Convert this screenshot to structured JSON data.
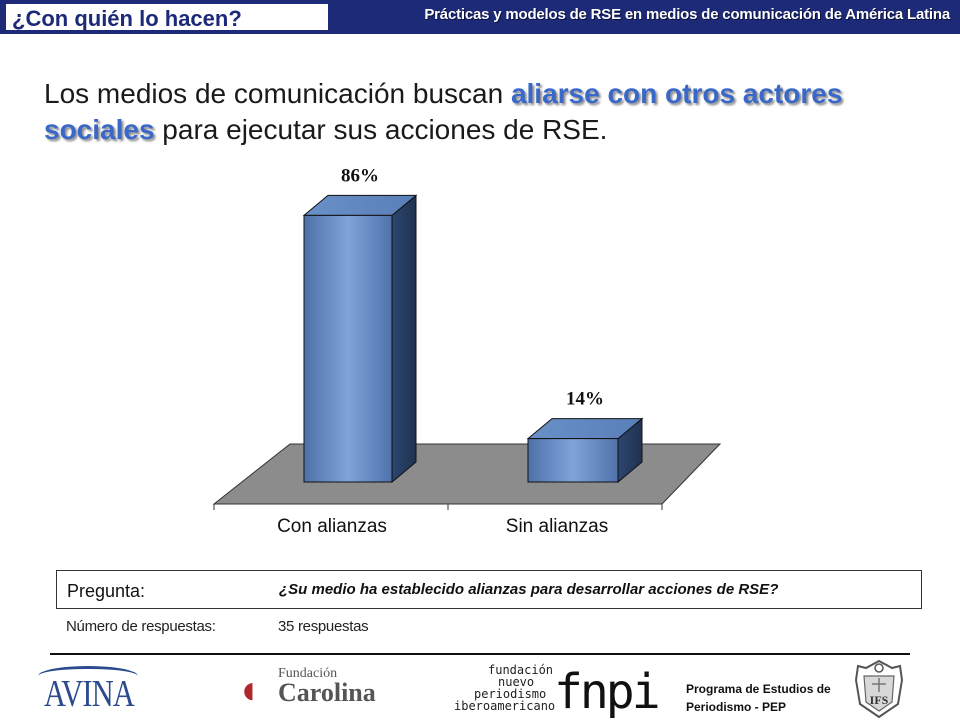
{
  "header": {
    "section_label": "¿Con quién lo hacen?",
    "subtitle": "Prácticas y modelos de RSE en medios de comunicación de América Latina"
  },
  "headline": {
    "part1": "Los medios de comunicación buscan ",
    "highlight": "aliarse con otros actores sociales",
    "part2": " para ejecutar sus acciones de RSE."
  },
  "chart_data": {
    "type": "bar",
    "categories": [
      "Con alianzas",
      "Sin alianzas"
    ],
    "values": [
      86,
      14
    ],
    "value_labels": [
      "86%",
      "14%"
    ],
    "ylim": [
      0,
      100
    ],
    "grid": false,
    "colors": {
      "bar_front": "#7fa4da",
      "bar_dark": "#20324f",
      "bar_top": "#5a7fb8",
      "floor": "#8c8c8c"
    }
  },
  "question": {
    "label": "Pregunta:",
    "text": "¿Su medio ha establecido alianzas para desarrollar acciones de RSE?",
    "responses_label": "Número de respuestas:",
    "responses_value": "35 respuestas"
  },
  "footer": {
    "avina": "AVINA",
    "carolina_small": "Fundación",
    "carolina_big": "Carolina",
    "fnpi_lines": [
      "fundación",
      "nuevo",
      "periodismo",
      "iberoamericano"
    ],
    "fnpi_logo": "fnpi",
    "pep_lines": [
      "Programa de Estudios de",
      "Periodismo - PEP"
    ],
    "seal_text": "IFS"
  }
}
